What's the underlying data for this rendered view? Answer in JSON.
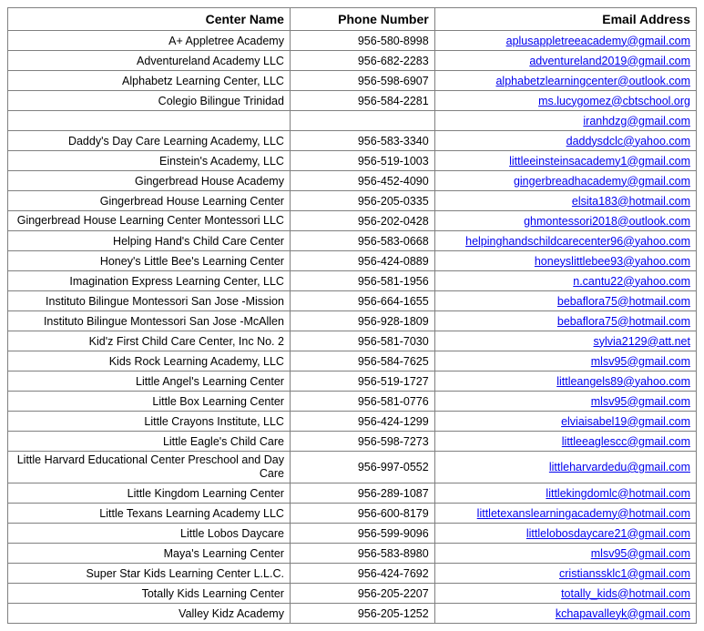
{
  "table": {
    "columns": [
      "Center Name",
      "Phone Number",
      "Email Address"
    ],
    "column_widths_pct": [
      41,
      21,
      38
    ],
    "header_fontsize": 14,
    "header_fontweight": "bold",
    "cell_fontsize": 12.5,
    "border_color": "#808080",
    "background_color": "#ffffff",
    "link_color": "#0000ee",
    "faded_color": "#a0a0a0",
    "text_color": "#000000",
    "text_align": "right",
    "rows": [
      {
        "name": "A+ Appletree Academy",
        "phone": "956-580-8998",
        "email": "aplusappletreeacademy@gmail.com"
      },
      {
        "name": "Adventureland Academy LLC",
        "phone": "956-682-2283",
        "email": "adventureland2019@gmail.com"
      },
      {
        "name": "Alphabetz Learning Center, LLC",
        "phone": "956-598-6907",
        "email": "alphabetzlearningcenter@outlook.com"
      },
      {
        "name": "Colegio Bilingue Trinidad",
        "phone": "956-584-2281",
        "email": "ms.lucygomez@cbtschool.org"
      },
      {
        "name": "",
        "phone": "",
        "email": "iranhdzg@gmail.com"
      },
      {
        "name": "Daddy's Day Care Learning Academy, LLC",
        "phone": "956-583-3340",
        "email": "daddysdclc@yahoo.com"
      },
      {
        "name": "Einstein's Academy, LLC",
        "phone": "956-519-1003",
        "email": "littleeinsteinsacademy1@gmail.com"
      },
      {
        "name": "Gingerbread House Academy",
        "phone": "956-452-4090",
        "email": "gingerbreadhacademy@gmail.com"
      },
      {
        "name": "Gingerbread House Learning Center",
        "phone": "956-205-0335",
        "email": "elsita183@hotmail.com"
      },
      {
        "name": "Gingerbread House Learning Center Montessori LLC",
        "phone": "956-202-0428",
        "email": "ghmontessori2018@outlook.com",
        "multiline": true
      },
      {
        "name": "Helping Hand's Child Care Center",
        "phone": "956-583-0668",
        "email": "helpinghandschildcarecenter96@yahoo.com"
      },
      {
        "name": "Honey's Little Bee's Learning Center",
        "phone": "956-424-0889",
        "email": "honeyslittlebee93@yahoo.com"
      },
      {
        "name": "Imagination Express Learning Center, LLC",
        "phone": "956-581-1956",
        "email": "n.cantu22@yahoo.com"
      },
      {
        "name": "Instituto Bilingue Montessori San Jose -Mission",
        "phone": "956-664-1655",
        "email": "bebaflora75@hotmail.com"
      },
      {
        "name": "Instituto Bilingue Montessori San Jose -McAllen",
        "phone": "956-928-1809",
        "email": "bebaflora75@hotmail.com"
      },
      {
        "name": "Kid'z First Child Care Center, Inc No. 2",
        "phone": "956-581-7030",
        "email": "sylvia2129@att.net",
        "faded": true
      },
      {
        "name": "Kids Rock Learning Academy, LLC",
        "phone": "956-584-7625",
        "email": "mlsv95@gmail.com"
      },
      {
        "name": "Little Angel's Learning Center",
        "phone": "956-519-1727",
        "email": "littleangels89@yahoo.com"
      },
      {
        "name": "Little Box Learning Center",
        "phone": "956-581-0776",
        "email": "mlsv95@gmail.com"
      },
      {
        "name": "Little Crayons Institute, LLC",
        "phone": "956-424-1299",
        "email": "elviaisabel19@gmail.com"
      },
      {
        "name": "Little Eagle's Child Care",
        "phone": "956-598-7273",
        "email": "littleeaglescc@gmail.com"
      },
      {
        "name": "Little Harvard Educational Center Preschool and Day Care",
        "phone": "956-997-0552",
        "email": "littleharvardedu@gmail.com",
        "multiline": true
      },
      {
        "name": "Little Kingdom Learning Center",
        "phone": "956-289-1087",
        "email": "littlekingdomlc@hotmail.com"
      },
      {
        "name": "Little Texans Learning Academy LLC",
        "phone": "956-600-8179",
        "email": "littletexanslearningacademy@hotmail.com"
      },
      {
        "name": "Little Lobos Daycare",
        "phone": "956-599-9096",
        "email": "littlelobosdaycare21@gmail.com"
      },
      {
        "name": "Maya's Learning Center",
        "phone": "956-583-8980",
        "email": "mlsv95@gmail.com"
      },
      {
        "name": "Super Star Kids Learning Center L.L.C.",
        "phone": "956-424-7692",
        "email": "cristianssklc1@gmail.com"
      },
      {
        "name": "Totally Kids Learning Center",
        "phone": "956-205-2207",
        "email": "totally_kids@hotmail.com"
      },
      {
        "name": "Valley Kidz Academy",
        "phone": "956-205-1252",
        "email": "kchapavalleyk@gmail.com"
      }
    ]
  }
}
